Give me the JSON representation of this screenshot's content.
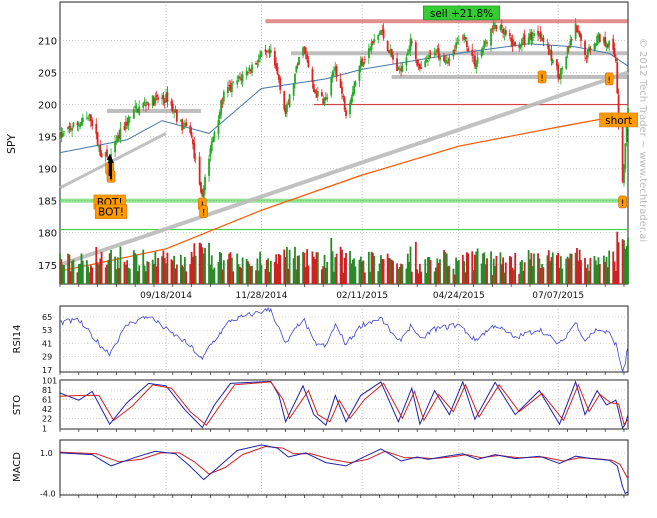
{
  "chart_data": [
    {
      "type": "candlestick",
      "panel": "price",
      "ylabel": "SPY",
      "yticks": [
        175,
        180,
        185,
        190,
        195,
        200,
        205,
        210
      ],
      "ylim": [
        172,
        216
      ],
      "x_dates": [
        "09/18/2014",
        "11/28/2014",
        "02/11/2015",
        "04/24/2015",
        "07/07/2015"
      ],
      "x_range": [
        "2014-07-01",
        "2015-08-28"
      ],
      "price_path": [
        [
          "2014-07-01",
          195.0
        ],
        [
          "2014-07-10",
          196.5
        ],
        [
          "2014-07-24",
          198.0
        ],
        [
          "2014-07-31",
          192.5
        ],
        [
          "2014-08-07",
          191.5
        ],
        [
          "2014-08-15",
          195.5
        ],
        [
          "2014-08-25",
          199.0
        ],
        [
          "2014-09-05",
          200.5
        ],
        [
          "2014-09-19",
          201.0
        ],
        [
          "2014-09-30",
          196.5
        ],
        [
          "2014-10-06",
          196.0
        ],
        [
          "2014-10-10",
          191.0
        ],
        [
          "2014-10-15",
          186.0
        ],
        [
          "2014-10-17",
          188.5
        ],
        [
          "2014-10-24",
          196.0
        ],
        [
          "2014-10-31",
          201.5
        ],
        [
          "2014-11-14",
          204.5
        ],
        [
          "2014-11-28",
          207.5
        ],
        [
          "2014-12-05",
          207.8
        ],
        [
          "2014-12-11",
          204.0
        ],
        [
          "2014-12-16",
          198.5
        ],
        [
          "2014-12-29",
          209.5
        ],
        [
          "2015-01-06",
          202.0
        ],
        [
          "2015-01-15",
          200.5
        ],
        [
          "2015-01-22",
          206.0
        ],
        [
          "2015-01-30",
          199.0
        ],
        [
          "2015-02-10",
          206.5
        ],
        [
          "2015-02-25",
          211.5
        ],
        [
          "2015-03-10",
          205.0
        ],
        [
          "2015-03-20",
          210.0
        ],
        [
          "2015-03-26",
          205.0
        ],
        [
          "2015-04-06",
          208.5
        ],
        [
          "2015-04-17",
          207.0
        ],
        [
          "2015-04-27",
          211.0
        ],
        [
          "2015-05-06",
          206.5
        ],
        [
          "2015-05-21",
          212.5
        ],
        [
          "2015-06-05",
          209.0
        ],
        [
          "2015-06-23",
          211.5
        ],
        [
          "2015-07-08",
          204.5
        ],
        [
          "2015-07-20",
          212.0
        ],
        [
          "2015-07-27",
          207.5
        ],
        [
          "2015-08-05",
          210.5
        ],
        [
          "2015-08-14",
          209.5
        ],
        [
          "2015-08-19",
          207.0
        ],
        [
          "2015-08-21",
          197.5
        ],
        [
          "2015-08-24",
          188.0
        ],
        [
          "2015-08-28",
          199.0
        ]
      ],
      "ma_short_path": [
        [
          "2014-07-01",
          192.5
        ],
        [
          "2014-08-20",
          194.5
        ],
        [
          "2014-09-15",
          197.5
        ],
        [
          "2014-10-20",
          195.5
        ],
        [
          "2014-11-28",
          202.5
        ],
        [
          "2015-01-15",
          204.0
        ],
        [
          "2015-02-11",
          205.5
        ],
        [
          "2015-04-24",
          208.0
        ],
        [
          "2015-06-15",
          209.5
        ],
        [
          "2015-07-20",
          209.0
        ],
        [
          "2015-08-14",
          208.0
        ],
        [
          "2015-08-28",
          206.0
        ]
      ],
      "ma_long_path": [
        [
          "2014-07-01",
          174.0
        ],
        [
          "2014-09-18",
          177.5
        ],
        [
          "2014-11-28",
          183.5
        ],
        [
          "2015-02-11",
          189.0
        ],
        [
          "2015-04-24",
          193.5
        ],
        [
          "2015-07-07",
          196.5
        ],
        [
          "2015-08-28",
          198.5
        ]
      ],
      "trendline": [
        [
          "2014-07-01",
          175.0
        ],
        [
          "2015-08-28",
          205.0
        ]
      ],
      "support_channel": [
        [
          "2014-07-01",
          187.0
        ],
        [
          "2014-09-18",
          195.5
        ]
      ],
      "levels": [
        {
          "name": "resistance-top",
          "y": 213.0,
          "x0": "2014-12-01",
          "x1": "2015-08-28",
          "color": "#cc3333"
        },
        {
          "name": "resistance-208",
          "y": 208.0,
          "x0": "2014-12-20",
          "x1": "2015-08-28",
          "color": "#888888"
        },
        {
          "name": "support-204",
          "y": 204.3,
          "x0": "2015-03-05",
          "x1": "2015-08-28",
          "color": "#888888"
        },
        {
          "name": "level-200",
          "y": 200.0,
          "x0": "2015-01-06",
          "x1": "2015-08-28",
          "color": "#cc3333"
        },
        {
          "name": "support-199",
          "y": 199.0,
          "x0": "2014-08-05",
          "x1": "2014-10-14",
          "color": "#888888"
        },
        {
          "name": "support-185",
          "y": 185.0,
          "x0": "2014-07-01",
          "x1": "2015-08-28",
          "color": "#33cc33"
        },
        {
          "name": "target-180",
          "y": 180.5,
          "x0": "2014-07-01",
          "x1": "2015-08-28",
          "color": "#33cc33"
        }
      ],
      "annotations": [
        {
          "name": "sell-label",
          "text": "sell +21.8%",
          "x": "2015-04-26",
          "y": 214.3,
          "bg": "#33cc33"
        },
        {
          "name": "short-label",
          "text": "short",
          "x": "2015-08-21",
          "y": 197.6,
          "bg": "#ff9900"
        },
        {
          "name": "bot-label-1",
          "text": "BOT!",
          "x": "2014-08-07",
          "y": 184.8,
          "bg": "#ff9900"
        },
        {
          "name": "bot-label-2",
          "text": "BOT!",
          "x": "2014-08-08",
          "y": 183.3,
          "bg": "#ff9900"
        }
      ],
      "alert_markers": [
        [
          "2014-08-07",
          190.0
        ],
        [
          "2014-08-08",
          188.8
        ],
        [
          "2014-10-15",
          184.5
        ],
        [
          "2014-10-16",
          183.3
        ],
        [
          "2015-06-25",
          204.3
        ],
        [
          "2015-08-14",
          204.0
        ],
        [
          "2015-08-24",
          184.8
        ]
      ],
      "buy_arrows": [
        [
          "2014-08-07",
          192.3
        ],
        [
          "2014-08-08",
          191.8
        ]
      ],
      "watermark": "© 2012 Tech Trader ~ www.techtrader.ai",
      "colors": {
        "up": "#22aa22",
        "down": "#dd2222",
        "ma_short": "#4477aa",
        "ma_long": "#ff5500"
      }
    },
    {
      "type": "line",
      "panel": "rsi",
      "ylabel": "RSI14",
      "yticks": [
        17,
        29,
        41,
        53,
        65
      ],
      "ylim": [
        15,
        75
      ],
      "path": [
        [
          "2014-07-01",
          60
        ],
        [
          "2014-07-15",
          62
        ],
        [
          "2014-08-01",
          38
        ],
        [
          "2014-08-07",
          32
        ],
        [
          "2014-08-20",
          58
        ],
        [
          "2014-09-05",
          66
        ],
        [
          "2014-09-20",
          52
        ],
        [
          "2014-10-05",
          40
        ],
        [
          "2014-10-15",
          26
        ],
        [
          "2014-10-20",
          38
        ],
        [
          "2014-11-05",
          62
        ],
        [
          "2014-11-28",
          70
        ],
        [
          "2014-12-05",
          72
        ],
        [
          "2014-12-16",
          40
        ],
        [
          "2014-12-29",
          64
        ],
        [
          "2015-01-06",
          42
        ],
        [
          "2015-01-15",
          38
        ],
        [
          "2015-01-22",
          58
        ],
        [
          "2015-01-30",
          40
        ],
        [
          "2015-02-11",
          58
        ],
        [
          "2015-02-25",
          64
        ],
        [
          "2015-03-10",
          42
        ],
        [
          "2015-03-20",
          58
        ],
        [
          "2015-03-26",
          44
        ],
        [
          "2015-04-06",
          54
        ],
        [
          "2015-04-24",
          58
        ],
        [
          "2015-05-06",
          44
        ],
        [
          "2015-05-21",
          58
        ],
        [
          "2015-06-05",
          46
        ],
        [
          "2015-06-23",
          54
        ],
        [
          "2015-07-08",
          40
        ],
        [
          "2015-07-20",
          60
        ],
        [
          "2015-07-27",
          44
        ],
        [
          "2015-08-05",
          54
        ],
        [
          "2015-08-14",
          50
        ],
        [
          "2015-08-19",
          40
        ],
        [
          "2015-08-24",
          16
        ],
        [
          "2015-08-26",
          24
        ],
        [
          "2015-08-28",
          38
        ]
      ],
      "color": "#4444cc"
    },
    {
      "type": "line",
      "panel": "stochastic",
      "ylabel": "STO",
      "yticks": [
        1,
        22,
        42,
        61,
        81,
        101
      ],
      "ylim": [
        0,
        102
      ],
      "fast_path": [
        [
          "2014-07-01",
          75
        ],
        [
          "2014-07-15",
          60
        ],
        [
          "2014-07-25",
          78
        ],
        [
          "2014-08-07",
          10
        ],
        [
          "2014-08-20",
          55
        ],
        [
          "2014-09-05",
          95
        ],
        [
          "2014-09-18",
          90
        ],
        [
          "2014-10-02",
          40
        ],
        [
          "2014-10-15",
          3
        ],
        [
          "2014-10-24",
          50
        ],
        [
          "2014-11-05",
          95
        ],
        [
          "2014-12-05",
          99
        ],
        [
          "2014-12-11",
          70
        ],
        [
          "2014-12-16",
          15
        ],
        [
          "2014-12-29",
          90
        ],
        [
          "2015-01-06",
          30
        ],
        [
          "2015-01-15",
          8
        ],
        [
          "2015-01-22",
          70
        ],
        [
          "2015-01-30",
          15
        ],
        [
          "2015-02-10",
          70
        ],
        [
          "2015-02-25",
          98
        ],
        [
          "2015-03-10",
          15
        ],
        [
          "2015-03-20",
          85
        ],
        [
          "2015-03-26",
          10
        ],
        [
          "2015-04-06",
          80
        ],
        [
          "2015-04-17",
          30
        ],
        [
          "2015-04-27",
          98
        ],
        [
          "2015-05-06",
          20
        ],
        [
          "2015-05-21",
          97
        ],
        [
          "2015-06-05",
          30
        ],
        [
          "2015-06-23",
          80
        ],
        [
          "2015-07-08",
          10
        ],
        [
          "2015-07-20",
          98
        ],
        [
          "2015-07-27",
          30
        ],
        [
          "2015-08-05",
          80
        ],
        [
          "2015-08-12",
          50
        ],
        [
          "2015-08-19",
          60
        ],
        [
          "2015-08-24",
          2
        ],
        [
          "2015-08-26",
          10
        ],
        [
          "2015-08-28",
          30
        ]
      ],
      "slow_path": [
        [
          "2014-07-01",
          68
        ],
        [
          "2014-07-18",
          70
        ],
        [
          "2014-07-30",
          70
        ],
        [
          "2014-08-10",
          18
        ],
        [
          "2014-08-24",
          48
        ],
        [
          "2014-09-08",
          92
        ],
        [
          "2014-09-22",
          85
        ],
        [
          "2014-10-06",
          36
        ],
        [
          "2014-10-18",
          8
        ],
        [
          "2014-10-28",
          48
        ],
        [
          "2014-11-08",
          92
        ],
        [
          "2014-12-05",
          98
        ],
        [
          "2014-12-14",
          62
        ],
        [
          "2014-12-19",
          22
        ],
        [
          "2015-01-02",
          80
        ],
        [
          "2015-01-09",
          30
        ],
        [
          "2015-01-18",
          15
        ],
        [
          "2015-01-25",
          60
        ],
        [
          "2015-02-02",
          22
        ],
        [
          "2015-02-13",
          62
        ],
        [
          "2015-02-27",
          95
        ],
        [
          "2015-03-13",
          22
        ],
        [
          "2015-03-22",
          78
        ],
        [
          "2015-03-29",
          18
        ],
        [
          "2015-04-09",
          72
        ],
        [
          "2015-04-20",
          36
        ],
        [
          "2015-04-29",
          92
        ],
        [
          "2015-05-09",
          25
        ],
        [
          "2015-05-24",
          92
        ],
        [
          "2015-06-08",
          36
        ],
        [
          "2015-06-25",
          74
        ],
        [
          "2015-07-11",
          18
        ],
        [
          "2015-07-22",
          92
        ],
        [
          "2015-07-30",
          36
        ],
        [
          "2015-08-07",
          72
        ],
        [
          "2015-08-15",
          55
        ],
        [
          "2015-08-21",
          52
        ],
        [
          "2015-08-25",
          10
        ],
        [
          "2015-08-28",
          20
        ]
      ],
      "colors": {
        "fast": "#2222aa",
        "slow": "#cc2222"
      }
    },
    {
      "type": "line",
      "panel": "macd",
      "ylabel": "MACD",
      "yticks": [
        1.0,
        -4.0
      ],
      "ylim": [
        -4.2,
        2.6
      ],
      "macd_path": [
        [
          "2014-07-01",
          1.0
        ],
        [
          "2014-07-25",
          0.8
        ],
        [
          "2014-08-08",
          -0.6
        ],
        [
          "2014-08-25",
          0.4
        ],
        [
          "2014-09-10",
          1.2
        ],
        [
          "2014-09-25",
          0.9
        ],
        [
          "2014-10-05",
          -0.5
        ],
        [
          "2014-10-16",
          -2.3
        ],
        [
          "2014-10-28",
          -0.6
        ],
        [
          "2014-11-10",
          1.3
        ],
        [
          "2014-11-28",
          2.0
        ],
        [
          "2014-12-10",
          1.6
        ],
        [
          "2014-12-18",
          0.5
        ],
        [
          "2014-12-31",
          1.0
        ],
        [
          "2015-01-15",
          -0.2
        ],
        [
          "2015-01-30",
          -0.6
        ],
        [
          "2015-02-11",
          0.4
        ],
        [
          "2015-02-25",
          1.5
        ],
        [
          "2015-03-12",
          0.0
        ],
        [
          "2015-03-24",
          0.5
        ],
        [
          "2015-04-01",
          0.2
        ],
        [
          "2015-04-15",
          0.6
        ],
        [
          "2015-04-27",
          0.9
        ],
        [
          "2015-05-08",
          0.2
        ],
        [
          "2015-05-21",
          0.8
        ],
        [
          "2015-06-05",
          0.3
        ],
        [
          "2015-06-23",
          0.6
        ],
        [
          "2015-07-08",
          -0.3
        ],
        [
          "2015-07-20",
          0.6
        ],
        [
          "2015-08-01",
          0.3
        ],
        [
          "2015-08-14",
          0.1
        ],
        [
          "2015-08-20",
          -0.6
        ],
        [
          "2015-08-24",
          -3.2
        ],
        [
          "2015-08-26",
          -4.0
        ],
        [
          "2015-08-28",
          -3.8
        ]
      ],
      "signal_path": [
        [
          "2014-07-01",
          1.1
        ],
        [
          "2014-07-28",
          0.9
        ],
        [
          "2014-08-14",
          -0.1
        ],
        [
          "2014-08-30",
          0.2
        ],
        [
          "2014-09-14",
          1.0
        ],
        [
          "2014-09-28",
          1.0
        ],
        [
          "2014-10-09",
          -0.1
        ],
        [
          "2014-10-20",
          -1.6
        ],
        [
          "2014-11-01",
          -0.8
        ],
        [
          "2014-11-14",
          0.8
        ],
        [
          "2014-12-01",
          1.8
        ],
        [
          "2014-12-14",
          1.6
        ],
        [
          "2014-12-22",
          0.9
        ],
        [
          "2015-01-04",
          0.9
        ],
        [
          "2015-01-19",
          0.2
        ],
        [
          "2015-02-02",
          -0.2
        ],
        [
          "2015-02-15",
          0.2
        ],
        [
          "2015-02-28",
          1.2
        ],
        [
          "2015-03-15",
          0.4
        ],
        [
          "2015-03-27",
          0.4
        ],
        [
          "2015-04-05",
          0.3
        ],
        [
          "2015-04-18",
          0.5
        ],
        [
          "2015-04-30",
          0.8
        ],
        [
          "2015-05-11",
          0.4
        ],
        [
          "2015-05-24",
          0.7
        ],
        [
          "2015-06-08",
          0.4
        ],
        [
          "2015-06-26",
          0.5
        ],
        [
          "2015-07-11",
          0.0
        ],
        [
          "2015-07-23",
          0.4
        ],
        [
          "2015-08-04",
          0.3
        ],
        [
          "2015-08-16",
          0.1
        ],
        [
          "2015-08-22",
          -0.4
        ],
        [
          "2015-08-26",
          -1.6
        ],
        [
          "2015-08-28",
          -2.2
        ]
      ],
      "colors": {
        "macd": "#2222aa",
        "signal": "#cc2222"
      }
    }
  ]
}
